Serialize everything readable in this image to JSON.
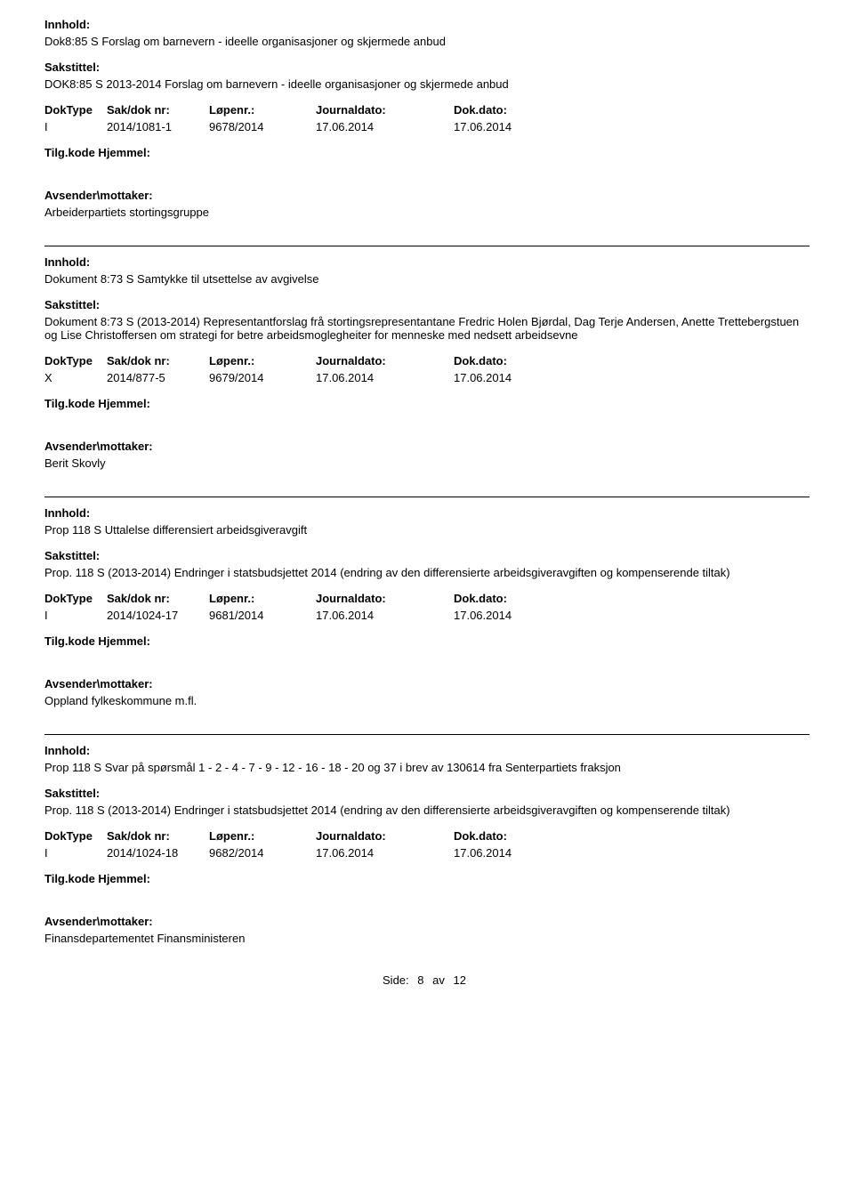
{
  "labels": {
    "innhold": "Innhold:",
    "sakstittel": "Sakstittel:",
    "doktype": "DokType",
    "sakdok": "Sak/dok nr:",
    "lopenr": "Løpenr.:",
    "journaldato": "Journaldato:",
    "dokdato": "Dok.dato:",
    "tilgkode": "Tilg.kode Hjemmel:",
    "avsender": "Avsender\\mottaker:"
  },
  "records": [
    {
      "innhold": "Dok8:85 S Forslag om barnevern - ideelle organisasjoner og skjermede anbud",
      "sakstittel": "DOK8:85 S 2013-2014 Forslag om barnevern - ideelle organisasjoner og skjermede anbud",
      "doktype": "I",
      "sakdok": "2014/1081-1",
      "lopenr": "9678/2014",
      "journaldato": "17.06.2014",
      "dokdato": "17.06.2014",
      "avsender": "Arbeiderpartiets stortingsgruppe",
      "top_rule": false
    },
    {
      "innhold": "Dokument 8:73 S Samtykke til utsettelse av avgivelse",
      "sakstittel": "Dokument 8:73 S (2013-2014) Representantforslag frå stortingsrepresentantane Fredric Holen Bjørdal, Dag Terje Andersen, Anette Trettebergstuen og Lise Christoffersen om strategi for betre arbeidsmoglegheiter for menneske med nedsett arbeidsevne",
      "doktype": "X",
      "sakdok": "2014/877-5",
      "lopenr": "9679/2014",
      "journaldato": "17.06.2014",
      "dokdato": "17.06.2014",
      "avsender": "Berit Skovly",
      "top_rule": true
    },
    {
      "innhold": "Prop 118 S Uttalelse differensiert arbeidsgiveravgift",
      "sakstittel": "Prop. 118 S (2013-2014) Endringer i statsbudsjettet 2014 (endring av den differensierte arbeidsgiveravgiften og kompenserende tiltak)",
      "doktype": "I",
      "sakdok": "2014/1024-17",
      "lopenr": "9681/2014",
      "journaldato": "17.06.2014",
      "dokdato": "17.06.2014",
      "avsender": "Oppland fylkeskommune m.fl.",
      "top_rule": true
    },
    {
      "innhold": "Prop 118 S Svar på spørsmål 1 - 2 - 4 - 7 - 9 - 12 - 16 - 18 - 20 og 37 i brev av 130614 fra Senterpartiets fraksjon",
      "sakstittel": "Prop. 118 S (2013-2014) Endringer i statsbudsjettet 2014 (endring av den differensierte arbeidsgiveravgiften og kompenserende tiltak)",
      "doktype": "I",
      "sakdok": "2014/1024-18",
      "lopenr": "9682/2014",
      "journaldato": "17.06.2014",
      "dokdato": "17.06.2014",
      "avsender": "Finansdepartementet Finansministeren",
      "top_rule": true
    }
  ],
  "footer": {
    "label": "Side:",
    "page": "8",
    "of_label": "av",
    "total": "12"
  }
}
